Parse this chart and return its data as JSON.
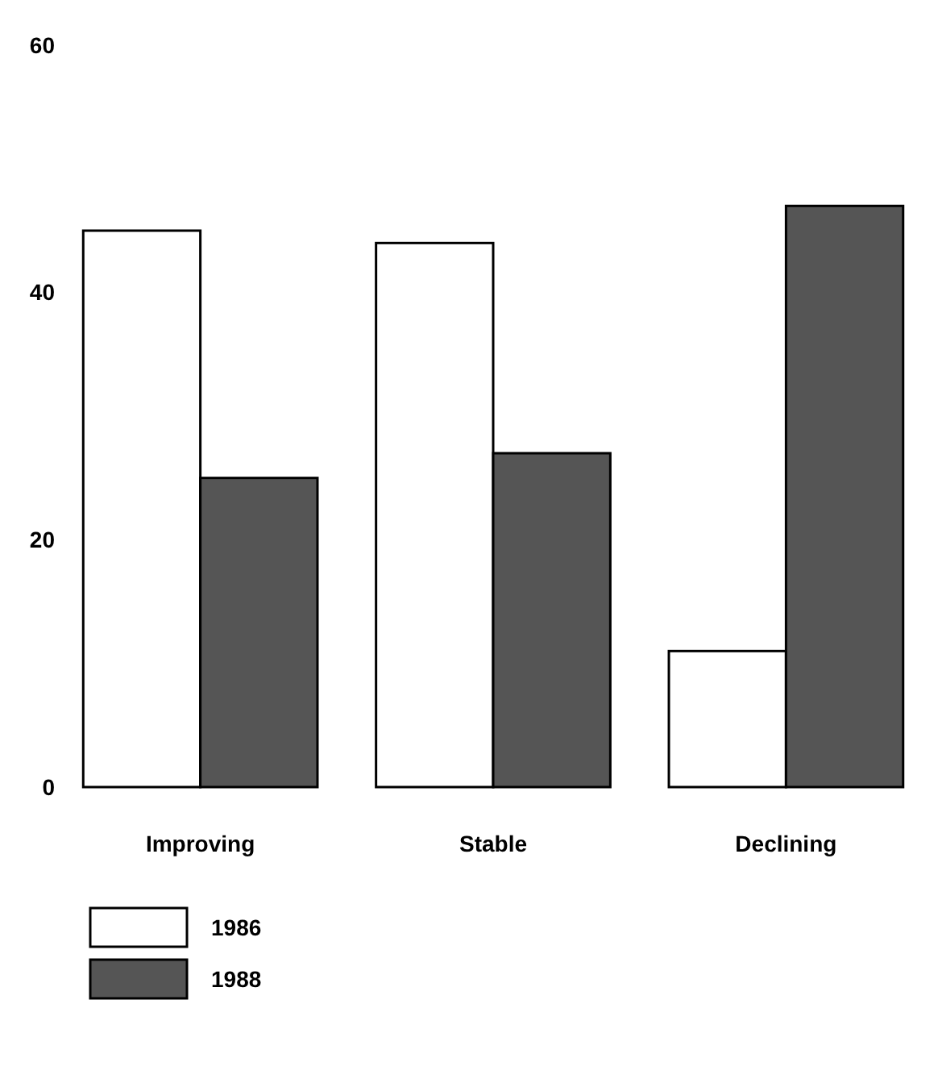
{
  "chart_data": {
    "type": "bar",
    "categories": [
      "Improving",
      "Stable",
      "Declining"
    ],
    "series": [
      {
        "name": "1986",
        "color": "#ffffff",
        "values": [
          45,
          44,
          11
        ]
      },
      {
        "name": "1988",
        "color": "#555555",
        "values": [
          25,
          27,
          47
        ]
      }
    ],
    "ylim": [
      0,
      60
    ],
    "yticks": [
      0,
      20,
      40,
      60
    ],
    "grid": false,
    "legend": "bottom left"
  }
}
